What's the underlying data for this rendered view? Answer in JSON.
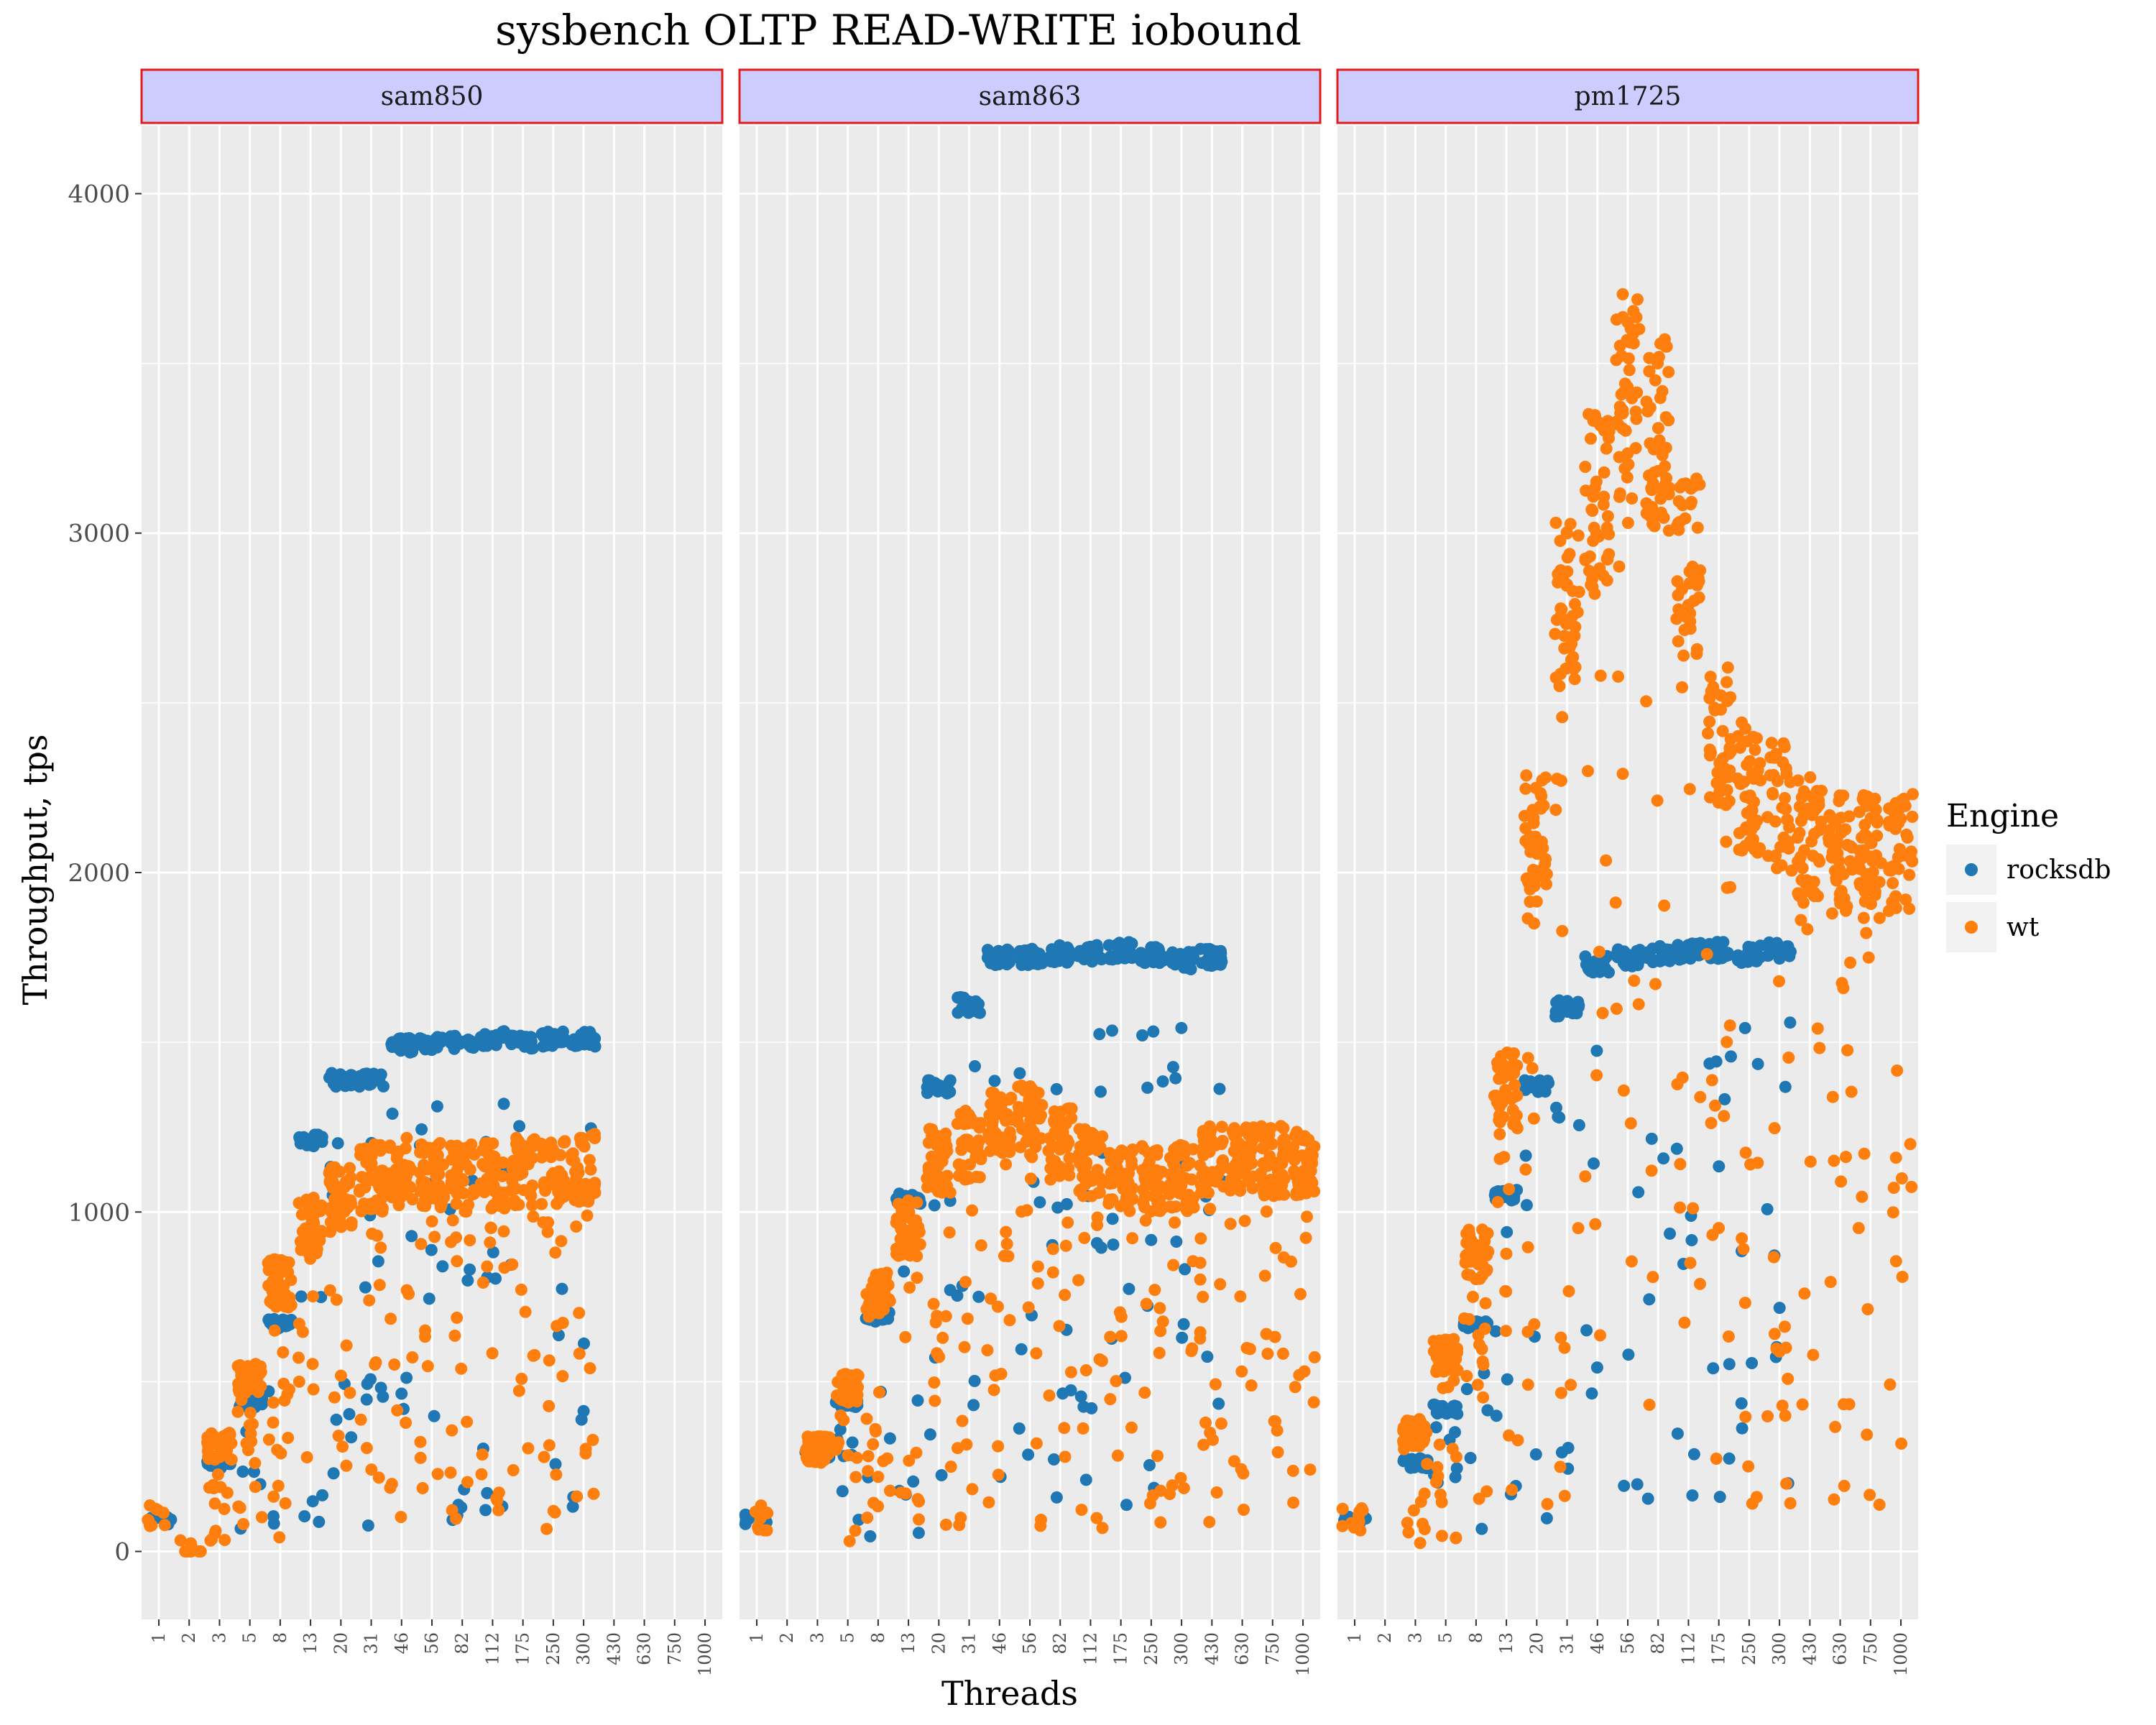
{
  "chart_data": {
    "type": "scatter",
    "title": "sysbench OLTP READ-WRITE iobound",
    "xlabel": "Threads",
    "ylabel": "Throughput, tps",
    "x_ticks": [
      "1",
      "2",
      "3",
      "5",
      "8",
      "13",
      "20",
      "31",
      "46",
      "56",
      "82",
      "112",
      "175",
      "250",
      "300",
      "430",
      "630",
      "750",
      "1000"
    ],
    "y_ticks": [
      0,
      1000,
      2000,
      3000,
      4000
    ],
    "ylim": [
      -200,
      4200
    ],
    "facets": [
      "sam850",
      "sam863",
      "pm1725"
    ],
    "legend": {
      "title": "Engine",
      "position": "right"
    },
    "series": [
      {
        "name": "rocksdb",
        "color": "#1f77b4",
        "summary": {
          "sam850": [
            [
              1,
              90
            ],
            [
              2,
              null
            ],
            [
              3,
              260
            ],
            [
              5,
              440
            ],
            [
              8,
              670
            ],
            [
              13,
              1210
            ],
            [
              20,
              1390
            ],
            [
              31,
              1390
            ],
            [
              46,
              1490
            ],
            [
              56,
              1500
            ],
            [
              82,
              1500
            ],
            [
              112,
              1510
            ],
            [
              175,
              1500
            ],
            [
              250,
              1510
            ],
            [
              300,
              1510
            ],
            [
              430,
              null
            ],
            [
              630,
              null
            ],
            [
              750,
              null
            ],
            [
              1000,
              null
            ]
          ],
          "sam863": [
            [
              1,
              95
            ],
            [
              2,
              null
            ],
            [
              3,
              290
            ],
            [
              5,
              440
            ],
            [
              8,
              690
            ],
            [
              13,
              1040
            ],
            [
              20,
              1370
            ],
            [
              31,
              1610
            ],
            [
              46,
              1750
            ],
            [
              56,
              1750
            ],
            [
              82,
              1760
            ],
            [
              112,
              1760
            ],
            [
              175,
              1770
            ],
            [
              250,
              1760
            ],
            [
              300,
              1740
            ],
            [
              430,
              1750
            ],
            [
              630,
              null
            ],
            [
              750,
              null
            ],
            [
              1000,
              null
            ]
          ],
          "pm1725": [
            [
              1,
              90
            ],
            [
              2,
              null
            ],
            [
              3,
              260
            ],
            [
              5,
              420
            ],
            [
              8,
              670
            ],
            [
              13,
              1050
            ],
            [
              20,
              1370
            ],
            [
              31,
              1600
            ],
            [
              46,
              1730
            ],
            [
              56,
              1750
            ],
            [
              82,
              1760
            ],
            [
              112,
              1770
            ],
            [
              175,
              1770
            ],
            [
              250,
              1760
            ],
            [
              300,
              1770
            ],
            [
              430,
              null
            ],
            [
              630,
              null
            ],
            [
              750,
              null
            ],
            [
              1000,
              null
            ]
          ]
        }
      },
      {
        "name": "wt",
        "color": "#ff7f0e",
        "summary": {
          "sam850": [
            [
              1,
              100
            ],
            [
              2,
              0
            ],
            [
              3,
              310
            ],
            [
              5,
              510
            ],
            [
              8,
              790
            ],
            [
              13,
              960
            ],
            [
              20,
              1050
            ],
            [
              31,
              1100
            ],
            [
              46,
              1120
            ],
            [
              56,
              1110
            ],
            [
              82,
              1100
            ],
            [
              112,
              1110
            ],
            [
              175,
              1120
            ],
            [
              250,
              1120
            ],
            [
              300,
              1130
            ],
            [
              430,
              null
            ],
            [
              630,
              null
            ],
            [
              750,
              null
            ],
            [
              1000,
              null
            ]
          ],
          "sam863": [
            [
              1,
              100
            ],
            [
              2,
              null
            ],
            [
              3,
              300
            ],
            [
              5,
              480
            ],
            [
              8,
              760
            ],
            [
              13,
              950
            ],
            [
              20,
              1150
            ],
            [
              31,
              1200
            ],
            [
              46,
              1250
            ],
            [
              56,
              1260
            ],
            [
              82,
              1200
            ],
            [
              112,
              1150
            ],
            [
              175,
              1100
            ],
            [
              250,
              1100
            ],
            [
              300,
              1100
            ],
            [
              430,
              1150
            ],
            [
              630,
              1150
            ],
            [
              750,
              1150
            ],
            [
              1000,
              1150
            ]
          ],
          "pm1725": [
            [
              1,
              100
            ],
            [
              2,
              null
            ],
            [
              3,
              350
            ],
            [
              5,
              580
            ],
            [
              8,
              880
            ],
            [
              13,
              1350
            ],
            [
              20,
              2100
            ],
            [
              31,
              2800
            ],
            [
              46,
              3100
            ],
            [
              56,
              3400
            ],
            [
              82,
              3300
            ],
            [
              112,
              2900
            ],
            [
              175,
              2400
            ],
            [
              250,
              2250
            ],
            [
              300,
              2200
            ],
            [
              430,
              2100
            ],
            [
              630,
              2050
            ],
            [
              750,
              2050
            ],
            [
              1000,
              2050
            ]
          ]
        }
      }
    ]
  }
}
